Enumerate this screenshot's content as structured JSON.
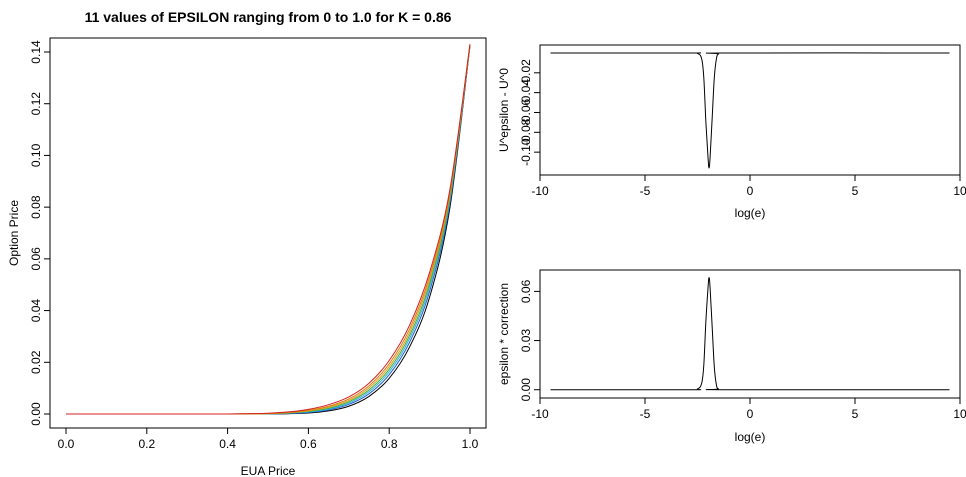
{
  "chart_data": [
    {
      "type": "line",
      "title": "11 values of EPSILON ranging from 0 to 1.0 for K = 0.86",
      "xlabel": "EUA Price",
      "ylabel": "Option Price",
      "xlim": [
        0,
        1.0
      ],
      "ylim": [
        0,
        0.14
      ],
      "xticks": [
        "0.0",
        "0.2",
        "0.4",
        "0.6",
        "0.8",
        "1.0"
      ],
      "yticks": [
        "0.00",
        "0.02",
        "0.04",
        "0.06",
        "0.08",
        "0.10",
        "0.12",
        "0.14"
      ],
      "x": [
        0.0,
        0.1,
        0.2,
        0.3,
        0.4,
        0.45,
        0.5,
        0.55,
        0.6,
        0.65,
        0.7,
        0.75,
        0.8,
        0.85,
        0.9,
        0.95,
        1.0
      ],
      "series": [
        {
          "color": "#000000",
          "values": [
            0,
            0,
            0,
            0,
            0,
            0,
            0,
            0.0001,
            0.0004,
            0.0012,
            0.003,
            0.0068,
            0.0138,
            0.0258,
            0.0452,
            0.0795,
            0.1425
          ]
        },
        {
          "color": "#1f5fd6",
          "values": [
            0,
            0,
            0,
            0,
            0,
            0,
            5e-05,
            0.0002,
            0.0006,
            0.0016,
            0.0037,
            0.0078,
            0.0152,
            0.0276,
            0.0474,
            0.0812,
            0.1426
          ]
        },
        {
          "color": "#37b0d8",
          "values": [
            0,
            0,
            0,
            0,
            0,
            0,
            0.0001,
            0.0003,
            0.0008,
            0.0019,
            0.0042,
            0.0086,
            0.0163,
            0.029,
            0.049,
            0.0824,
            0.1427
          ]
        },
        {
          "color": "#3fae3f",
          "values": [
            0,
            0,
            0,
            0,
            0,
            5e-05,
            0.0001,
            0.0004,
            0.001,
            0.0022,
            0.0047,
            0.0093,
            0.0173,
            0.0302,
            0.0504,
            0.0834,
            0.1428
          ]
        },
        {
          "color": "#d4a017",
          "values": [
            0,
            0,
            0,
            0,
            0,
            5e-05,
            0.00015,
            0.0005,
            0.0012,
            0.0026,
            0.0052,
            0.0101,
            0.0183,
            0.0314,
            0.0518,
            0.0845,
            0.1428
          ]
        },
        {
          "color": "#e07a10",
          "values": [
            0,
            0,
            0,
            0,
            0,
            0.0001,
            0.0002,
            0.0006,
            0.0015,
            0.003,
            0.0058,
            0.0109,
            0.0194,
            0.0327,
            0.0532,
            0.0855,
            0.1429
          ]
        },
        {
          "color": "#d62020",
          "values": [
            0,
            0,
            0,
            0,
            0,
            0.0001,
            0.0003,
            0.0008,
            0.0018,
            0.0036,
            0.0066,
            0.0119,
            0.0207,
            0.0342,
            0.0548,
            0.0866,
            0.143
          ]
        }
      ]
    },
    {
      "type": "line",
      "xlabel": "log(e)",
      "ylabel": "U^epsilon - U^0",
      "xlim": [
        -10,
        10
      ],
      "ylim": [
        -0.118,
        0.003
      ],
      "xticks": [
        "-10",
        "-5",
        "0",
        "5",
        "10"
      ],
      "yticks": [
        "-0.10",
        "-0.08",
        "-0.06",
        "-0.04",
        "-0.02"
      ],
      "x": [
        -9.5,
        -3.0,
        -2.5,
        -2.3,
        -2.2,
        -2.1,
        -2.0,
        -1.95,
        -1.9,
        -1.8,
        -1.7,
        -1.6,
        -1.5,
        -1.2,
        9.5
      ],
      "series": [
        {
          "color": "#000000",
          "values": [
            0,
            0,
            -0.0005,
            -0.006,
            -0.025,
            -0.07,
            -0.105,
            -0.116,
            -0.105,
            -0.065,
            -0.025,
            -0.006,
            -0.001,
            0,
            0
          ]
        }
      ]
    },
    {
      "type": "line",
      "xlabel": "log(e)",
      "ylabel": "epsilon * correction",
      "xlim": [
        -10,
        10
      ],
      "ylim": [
        -0.002,
        0.07
      ],
      "xticks": [
        "-10",
        "-5",
        "0",
        "5",
        "10"
      ],
      "yticks": [
        "0.00",
        "0.03",
        "0.06"
      ],
      "x": [
        -9.5,
        -3.0,
        -2.5,
        -2.3,
        -2.2,
        -2.1,
        -2.0,
        -1.95,
        -1.9,
        -1.8,
        -1.7,
        -1.6,
        -1.5,
        -1.2,
        9.5
      ],
      "series": [
        {
          "color": "#000000",
          "values": [
            0,
            0,
            0.0005,
            0.004,
            0.015,
            0.042,
            0.062,
            0.0685,
            0.062,
            0.038,
            0.014,
            0.003,
            0.0005,
            0,
            0
          ]
        }
      ]
    }
  ]
}
